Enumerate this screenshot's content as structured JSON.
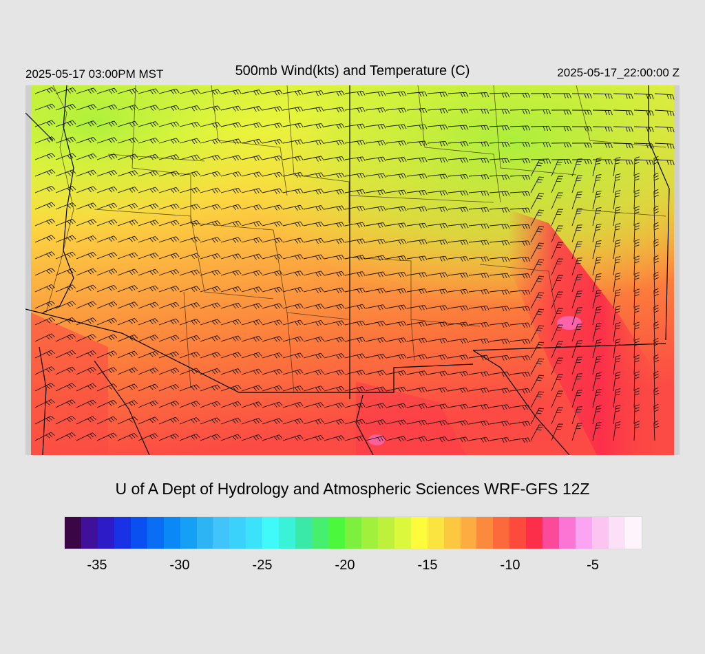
{
  "header": {
    "local_time": "2025-05-17 03:00PM MST",
    "title": "500mb Wind(kts) and Temperature (C)",
    "utc_time": "2025-05-17_22:00:00 Z"
  },
  "footer": {
    "credit": "U of A Dept of Hydrology and Atmospheric Sciences WRF-GFS 12Z"
  },
  "colorbar": {
    "colors": [
      "#3a0646",
      "#40109a",
      "#2e1bc8",
      "#1932e6",
      "#0a50f0",
      "#0a6ef5",
      "#0a88f5",
      "#16a0f5",
      "#2cb4f5",
      "#40c4fa",
      "#3ad2fa",
      "#3ae2fa",
      "#40fafa",
      "#3af2d8",
      "#3ae8a8",
      "#46f06e",
      "#4cf83c",
      "#7cf03c",
      "#a0f03c",
      "#bef03c",
      "#dcf83c",
      "#fcfc3c",
      "#fce440",
      "#fcc840",
      "#fcac40",
      "#fc8a3c",
      "#fc6a3c",
      "#fc4a3c",
      "#fc2e4a",
      "#fc4a9a",
      "#fc74d4",
      "#fca4f4",
      "#fcc4f0",
      "#fce0f8",
      "#fdf4fc"
    ],
    "tick_labels": [
      "-35",
      "-30",
      "-25",
      "-20",
      "-15",
      "-10",
      "-5"
    ],
    "tick_values": [
      -35,
      -30,
      -25,
      -20,
      -15,
      -10,
      -5
    ],
    "min": -37,
    "max": -2
  }
}
